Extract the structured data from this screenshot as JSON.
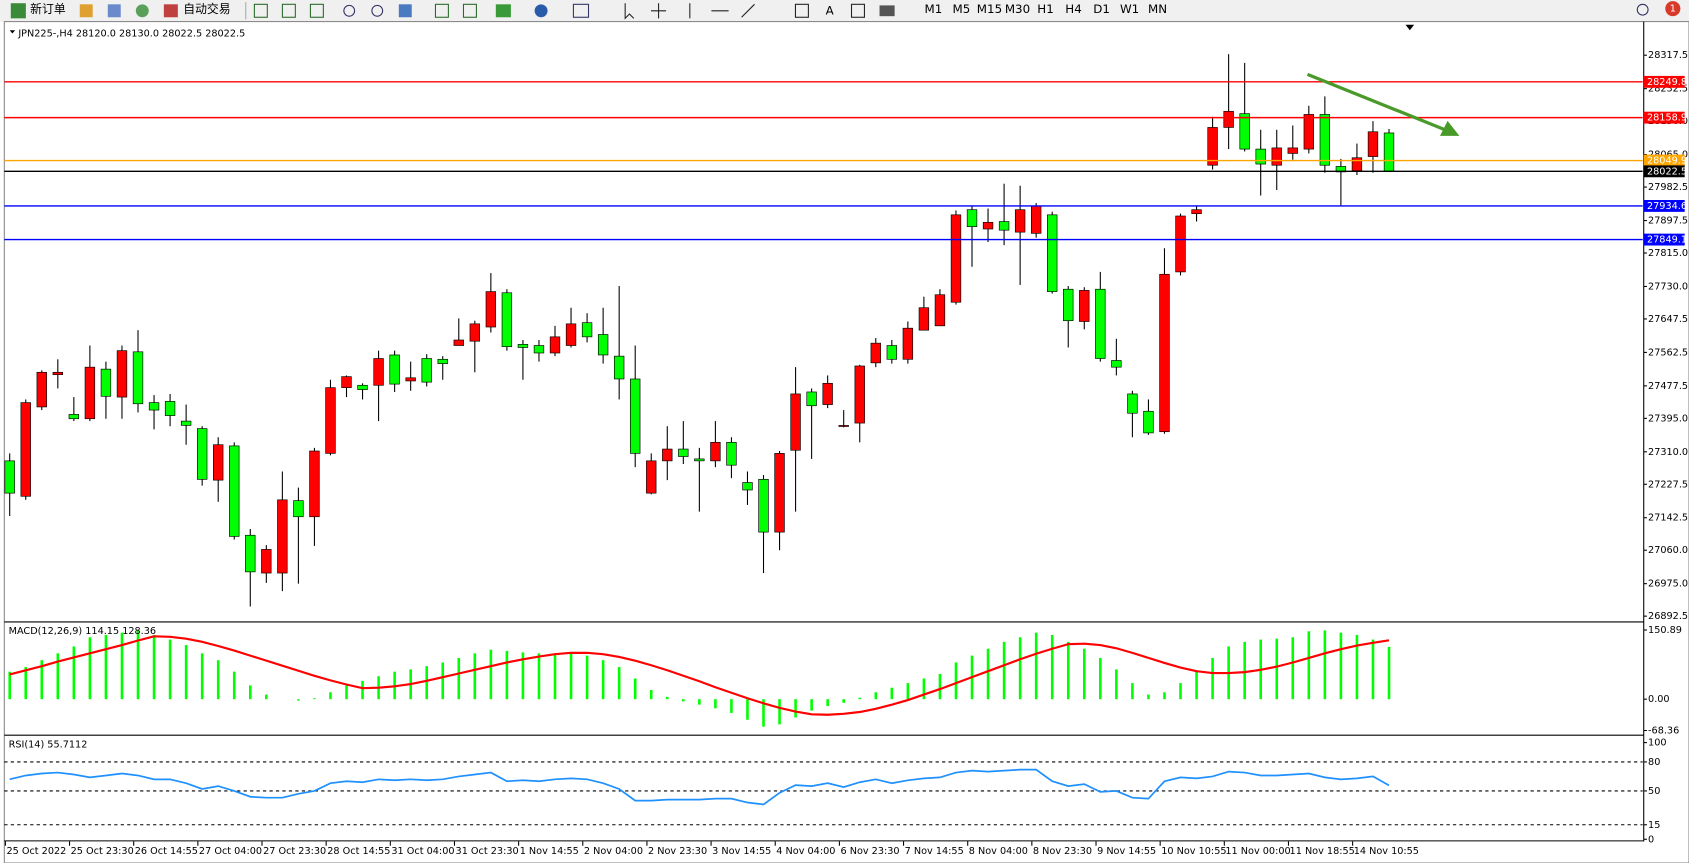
{
  "toolbar": {
    "new_order": "新订单",
    "auto_trading": "自动交易",
    "text_tool": "A",
    "timeframes": [
      "M1",
      "M5",
      "M15",
      "M30",
      "H1",
      "H4",
      "D1",
      "W1",
      "MN"
    ],
    "notifications": 1
  },
  "chart_data": [
    {
      "type": "candlestick",
      "title": "JPN225-,H4 28120.0 28130.0 28022.5 28022.5",
      "up_color": "#ff0000",
      "down_color": "#00ff00",
      "categories": [
        "25 Oct 2022",
        null,
        null,
        null,
        "25 Oct 23:30",
        null,
        null,
        null,
        "26 Oct 14:55",
        null,
        null,
        null,
        "27 Oct 04:00",
        null,
        null,
        null,
        "27 Oct 23:30",
        null,
        null,
        null,
        "28 Oct 14:55",
        null,
        null,
        null,
        "31 Oct 04:00",
        null,
        null,
        null,
        "31 Oct 23:30",
        null,
        null,
        null,
        "1 Nov 14:55",
        null,
        null,
        null,
        "2 Nov 04:00",
        null,
        null,
        null,
        "2 Nov 23:30",
        null,
        null,
        null,
        "3 Nov 14:55",
        null,
        null,
        null,
        "4 Nov 04:00",
        null,
        null,
        null,
        "6 Nov 23:30",
        null,
        null,
        null,
        "7 Nov 14:55",
        null,
        null,
        null,
        "8 Nov 04:00",
        null,
        null,
        null,
        "8 Nov 23:30",
        null,
        null,
        null,
        "9 Nov 14:55",
        null,
        null,
        null,
        "10 Nov 10:55",
        null,
        null,
        null,
        "11 Nov 00:00",
        null,
        null,
        null,
        "11 Nov 18:55",
        null,
        null,
        null,
        "14 Nov 10:55",
        null,
        null
      ],
      "open": [
        27287,
        27197,
        27424,
        27506,
        27405,
        27394,
        27520,
        27449,
        27564,
        27435,
        27438,
        27388,
        27369,
        27238,
        27325,
        27098,
        27002,
        27002,
        27186,
        27145,
        27306,
        27473,
        27479,
        27479,
        27556,
        27490,
        27547,
        27545,
        27580,
        27591,
        27627,
        27714,
        27583,
        27580,
        27561,
        27580,
        27638,
        27608,
        27553,
        27495,
        27205,
        27287,
        27317,
        27292,
        27287,
        27334,
        27232,
        27240,
        27106,
        27314,
        27462,
        27430,
        27375,
        27383,
        27536,
        27580,
        27545,
        27619,
        27630,
        27690,
        27925,
        27876,
        27895,
        27868,
        27865,
        27912,
        27723,
        27641,
        27723,
        27542,
        27457,
        27413,
        27361,
        27767,
        27915,
        28038,
        28134,
        28169,
        28079,
        28038,
        28068,
        28079,
        28167,
        28035,
        28024,
        28060,
        28120
      ],
      "high": [
        27306,
        27443,
        27517,
        27545,
        27449,
        27580,
        27539,
        27580,
        27619,
        27454,
        27457,
        27430,
        27375,
        27347,
        27334,
        27114,
        27073,
        27260,
        27219,
        27320,
        27493,
        27504,
        27484,
        27567,
        27567,
        27539,
        27558,
        27553,
        27649,
        27643,
        27764,
        27723,
        27594,
        27594,
        27630,
        27676,
        27662,
        27676,
        27731,
        27580,
        27306,
        27375,
        27388,
        27320,
        27388,
        27347,
        27260,
        27251,
        27312,
        27525,
        27471,
        27504,
        27416,
        27531,
        27599,
        27594,
        27641,
        27704,
        27723,
        27923,
        27936,
        27928,
        27991,
        27986,
        27942,
        27920,
        27731,
        27728,
        27767,
        27597,
        27465,
        27443,
        27827,
        27915,
        27936,
        28161,
        28320,
        28298,
        28128,
        28128,
        28139,
        28189,
        28213,
        28054,
        28093,
        28150,
        28130
      ],
      "low": [
        27147,
        27188,
        27416,
        27471,
        27388,
        27388,
        27394,
        27394,
        27410,
        27367,
        27375,
        27328,
        27224,
        27183,
        27087,
        26917,
        26977,
        26956,
        26975,
        27071,
        27301,
        27449,
        27443,
        27388,
        27462,
        27465,
        27476,
        27493,
        27580,
        27512,
        27613,
        27567,
        27493,
        27539,
        27553,
        27575,
        27588,
        27534,
        27443,
        27271,
        27202,
        27238,
        27279,
        27158,
        27271,
        27243,
        27175,
        27002,
        27060,
        27158,
        27292,
        27421,
        27372,
        27334,
        27525,
        27534,
        27534,
        27619,
        27630,
        27684,
        27780,
        27843,
        27835,
        27734,
        27854,
        27712,
        27575,
        27621,
        27539,
        27504,
        27347,
        27353,
        27356,
        27758,
        27895,
        28027,
        28079,
        28073,
        27961,
        27975,
        28052,
        28068,
        28019,
        27936,
        28013,
        28019,
        28022.5
      ],
      "close": [
        27205,
        27435,
        27512,
        27512,
        27394,
        27525,
        27451,
        27567,
        27432,
        27416,
        27402,
        27377,
        27240,
        27328,
        27095,
        27005,
        27062,
        27188,
        27145,
        27312,
        27473,
        27501,
        27468,
        27547,
        27482,
        27498,
        27487,
        27534,
        27594,
        27635,
        27717,
        27577,
        27575,
        27561,
        27602,
        27635,
        27602,
        27556,
        27495,
        27306,
        27287,
        27317,
        27298,
        27287,
        27334,
        27276,
        27213,
        27106,
        27306,
        27457,
        27427,
        27484,
        27377,
        27528,
        27586,
        27545,
        27624,
        27676,
        27709,
        27912,
        27882,
        27893,
        27873,
        27925,
        27934,
        27717,
        27643,
        27720,
        27547,
        27525,
        27408,
        27358,
        27761,
        27909,
        27925,
        28134,
        28175,
        28079,
        28041,
        28082,
        28082,
        28167,
        28038,
        28021,
        28057,
        28123,
        28022.5
      ],
      "ylim": [
        26882,
        28381
      ],
      "yticks": [
        28317.5,
        28232.5,
        {
          "value": 28150,
          "label": "28150.0"
        },
        {
          "value": 28065,
          "label": "28065.0"
        },
        27982.5,
        27897.5,
        {
          "value": 27815,
          "label": "27815.0"
        },
        {
          "value": 27730,
          "label": "27730.0"
        },
        27647.5,
        27562.5,
        27477.5,
        {
          "value": 27395,
          "label": "27395.0"
        },
        {
          "value": 27310,
          "label": "27310.0"
        },
        27227.5,
        27142.5,
        {
          "value": 27060,
          "label": "27060.0"
        },
        {
          "value": 26975,
          "label": "26975.0"
        },
        26892.5
      ],
      "hlines": [
        {
          "value": 28249.8,
          "color": "#ff0000"
        },
        {
          "value": 28158.9,
          "color": "#ff0000"
        },
        {
          "value": 28049.9,
          "color": "#ffa500"
        },
        {
          "value": 28022.5,
          "color": "#000000"
        },
        {
          "value": 27934.6,
          "color": "#0000ff"
        },
        {
          "value": 27849.1,
          "color": "#0000ff"
        }
      ]
    },
    {
      "type": "macd",
      "title": "MACD(12,26,9) 114.15 128.36",
      "ylim": [
        -75,
        165
      ],
      "yticks": [
        150.89,
        {
          "value": 0,
          "label": "0.00"
        },
        -68.36
      ],
      "series": [
        {
          "style": "bar",
          "color": "#00ff00",
          "values": [
            60,
            70,
            85,
            100,
            115,
            135,
            140,
            145,
            150,
            140,
            130,
            118,
            100,
            85,
            60,
            30,
            10,
            0,
            -3,
            2,
            15,
            30,
            40,
            50,
            60,
            65,
            72,
            80,
            90,
            100,
            108,
            105,
            102,
            100,
            100,
            100,
            95,
            85,
            70,
            45,
            20,
            5,
            -5,
            -12,
            -20,
            -30,
            -45,
            -60,
            -55,
            -40,
            -25,
            -15,
            -8,
            3,
            15,
            25,
            35,
            45,
            55,
            80,
            95,
            110,
            125,
            135,
            145,
            140,
            125,
            110,
            90,
            65,
            35,
            10,
            15,
            35,
            60,
            90,
            115,
            125,
            130,
            132,
            135,
            148,
            150,
            145,
            140,
            130,
            114.15
          ]
        },
        {
          "style": "line",
          "color": "#ff0000",
          "values": [
            54,
            63,
            72,
            82,
            91,
            100,
            109,
            118,
            128,
            137,
            136,
            132,
            125,
            116,
            106,
            95,
            84,
            73,
            62,
            51,
            41,
            32,
            24,
            25,
            28,
            33,
            40,
            48,
            56,
            64,
            72,
            80,
            87,
            93,
            98,
            101,
            101,
            98,
            92,
            84,
            74,
            63,
            51,
            39,
            26,
            14,
            2,
            -9,
            -19,
            -27,
            -33,
            -34,
            -32,
            -28,
            -21,
            -12,
            -2,
            10,
            22,
            35,
            48,
            61,
            74,
            87,
            99,
            110,
            120,
            121,
            118,
            111,
            101,
            90,
            79,
            69,
            61,
            57,
            57,
            59,
            64,
            71,
            80,
            90,
            100,
            109,
            117,
            123,
            128.36
          ]
        }
      ]
    },
    {
      "type": "line",
      "title": "RSI(14) 55.7112",
      "color": "#1e90ff",
      "ylim": [
        0,
        106
      ],
      "yticks": [
        100,
        80,
        50,
        15,
        0
      ],
      "levels": [
        80,
        50,
        15
      ],
      "values": [
        62,
        66,
        68,
        69,
        67,
        64,
        66,
        68,
        66,
        62,
        62,
        58,
        52,
        55,
        50,
        44,
        43,
        43,
        47,
        50,
        58,
        60,
        59,
        62,
        61,
        62,
        61,
        62,
        65,
        67,
        69,
        60,
        61,
        60,
        62,
        63,
        62,
        58,
        52,
        40,
        40,
        41,
        41,
        41,
        42,
        42,
        38,
        36,
        48,
        56,
        55,
        58,
        54,
        59,
        62,
        58,
        61,
        63,
        64,
        69,
        71,
        70,
        71,
        72,
        72,
        60,
        55,
        57,
        49,
        50,
        43,
        42,
        60,
        64,
        63,
        65,
        70,
        69,
        66,
        66,
        67,
        68,
        64,
        62,
        63,
        65,
        55.7112
      ]
    }
  ]
}
